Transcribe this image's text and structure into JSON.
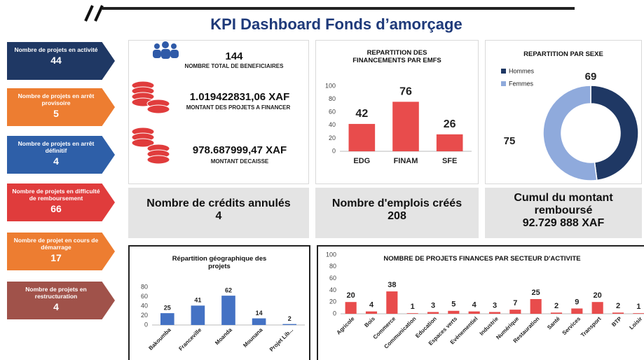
{
  "header": {
    "title": "KPI Dashboard Fonds d’amorçage"
  },
  "side_cards": [
    {
      "label": "Nombre de projets en activité",
      "value": 44,
      "color": "#1f3864"
    },
    {
      "label": "Nombre de projets en arrêt provisoire",
      "value": 5,
      "color": "#ed7d31"
    },
    {
      "label": "Nombre de projets en arrêt définitif",
      "value": 4,
      "color": "#2e5fa8"
    },
    {
      "label": "Nombre de projets en difficulté de remboursement",
      "value": 66,
      "color": "#e03c3c"
    },
    {
      "label": "Nombre de projet en cours de démarrage",
      "value": 17,
      "color": "#ed7d31"
    },
    {
      "label": "Nombre de projets en restructuration",
      "value": 4,
      "color": "#a0524a"
    }
  ],
  "totals": [
    {
      "value": 144,
      "label": "NOMBRE TOTAL DE BENEFICIAIRES"
    },
    {
      "value": "1.019422831,06 XAF",
      "label": "MONTANT DES PROJETS A FINANCER"
    },
    {
      "value": "978.687999,47 XAF",
      "label": "MONTANT DECAISSE"
    }
  ],
  "kpis": [
    {
      "label": "Nombre de crédits annulés",
      "value": 4
    },
    {
      "label": "Nombre d'emplois créés",
      "value": 208
    },
    {
      "label": "Cumul du montant remboursé",
      "value": "92.729 888 XAF"
    }
  ],
  "chart_data": [
    {
      "type": "bar",
      "title": "REPARTITION DES FINANCEMENTS PAR EMFS",
      "categories": [
        "EDG",
        "FINAM",
        "SFE"
      ],
      "values": [
        42,
        76,
        26
      ],
      "color": "#e84c4c",
      "ylim": [
        0,
        100
      ],
      "yticks": [
        0,
        20,
        40,
        60,
        80,
        100
      ]
    },
    {
      "type": "pie",
      "title": "REPARTITION PAR SEXE",
      "categories": [
        "Hommes",
        "Femmes"
      ],
      "values": [
        69,
        75
      ],
      "colors": [
        "#1f3864",
        "#8faadc"
      ],
      "legend": "upper left"
    },
    {
      "type": "bar",
      "title": "Répartition géographique des projets",
      "categories": [
        "Bakoumba",
        "Franceville",
        "Moanda",
        "Mounana",
        "Projet Lib..."
      ],
      "values": [
        25,
        41,
        62,
        14,
        2
      ],
      "color": "#4472c4",
      "ylim": [
        0,
        80
      ],
      "yticks": [
        0,
        20,
        40,
        60,
        80
      ]
    },
    {
      "type": "bar",
      "title": "NOMBRE DE PROJETS FINANCES PAR SECTEUR D'ACTIVITE",
      "categories": [
        "Agricole",
        "Bois",
        "Commerce",
        "Communication",
        "Education",
        "Espaces verts",
        "Evènementiel",
        "Industrie",
        "Numérique",
        "Restauration",
        "Santé",
        "Services",
        "Transport",
        "BTP",
        "Loisir"
      ],
      "values": [
        20,
        4,
        38,
        1,
        3,
        5,
        4,
        3,
        7,
        25,
        2,
        9,
        20,
        2,
        1
      ],
      "color": "#e84c4c",
      "ylim": [
        0,
        100
      ],
      "yticks": [
        0,
        20,
        40,
        60,
        80,
        100
      ]
    }
  ]
}
